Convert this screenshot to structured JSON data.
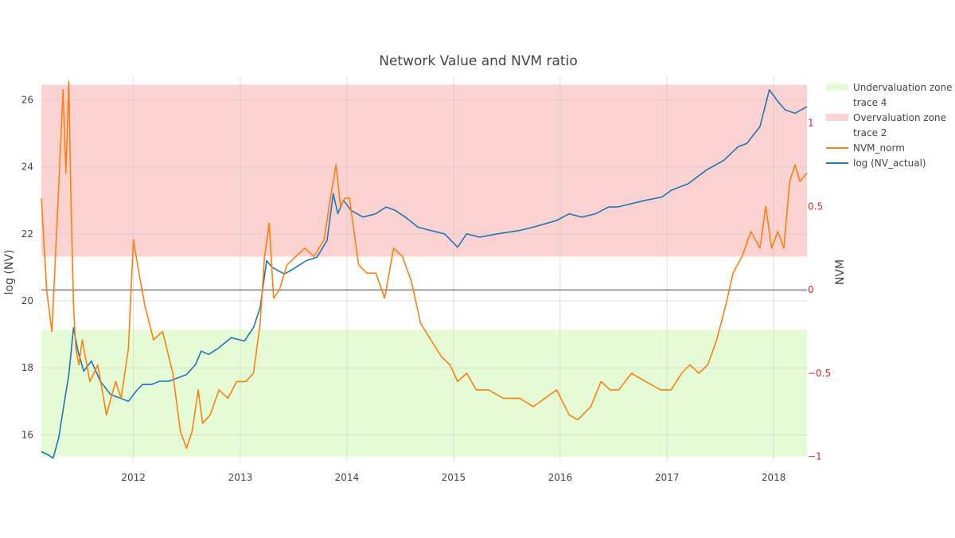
{
  "chart_data": {
    "type": "line",
    "title": "Network Value and NVM ratio",
    "x_range": [
      "2011-02-20",
      "2018-04-25"
    ],
    "x_ticks": [
      "2012",
      "2013",
      "2014",
      "2015",
      "2016",
      "2017",
      "2018"
    ],
    "y_left": {
      "label": "log (NV)",
      "range": [
        15.2,
        26.7
      ],
      "ticks": [
        "16",
        "18",
        "20",
        "22",
        "24",
        "26"
      ]
    },
    "y_right": {
      "label": "NVM",
      "range": [
        -1.03,
        1.28
      ],
      "ticks": [
        "1",
        "0.5",
        "0",
        "−0.5",
        "−1"
      ],
      "tick_values": [
        1,
        0.5,
        0,
        -0.5,
        -1
      ],
      "color": "#d62728"
    },
    "zones": [
      {
        "name": "Undervaluation zone",
        "nvm_range": [
          -1,
          -0.24
        ],
        "color": "#e5fbd6"
      },
      {
        "name": "Overvaluation zone",
        "nvm_range": [
          0.2,
          1.23
        ],
        "color": "#f9d2d1"
      }
    ],
    "zero_line": {
      "nvm": 0,
      "color": "#444444"
    },
    "legend": {
      "position": "top-right",
      "entries": [
        {
          "label": "Undervaluation zone",
          "kind": "zone",
          "color": "#e5fbd6"
        },
        {
          "label": "trace 4",
          "kind": "none",
          "color": ""
        },
        {
          "label": "Overvaluation zone",
          "kind": "zone",
          "color": "#f9d2d1"
        },
        {
          "label": "trace 2",
          "kind": "none",
          "color": ""
        },
        {
          "label": "NVM_norm",
          "kind": "line",
          "color": "#ff7f0e"
        },
        {
          "label": "log (NV_actual)",
          "kind": "line",
          "color": "#1f77b4"
        }
      ]
    },
    "series": [
      {
        "name": "log (NV_actual)",
        "axis": "left",
        "color": "#1f77b4",
        "x": [
          "2011-02-20",
          "2011-03-15",
          "2011-04-01",
          "2011-04-20",
          "2011-05-10",
          "2011-05-25",
          "2011-06-10",
          "2011-06-25",
          "2011-07-15",
          "2011-08-10",
          "2011-09-10",
          "2011-10-15",
          "2011-11-15",
          "2011-12-15",
          "2012-01-10",
          "2012-02-01",
          "2012-03-01",
          "2012-04-01",
          "2012-05-01",
          "2012-06-01",
          "2012-07-01",
          "2012-08-01",
          "2012-08-20",
          "2012-09-15",
          "2012-10-20",
          "2012-12-01",
          "2013-01-15",
          "2013-02-15",
          "2013-03-10",
          "2013-04-01",
          "2013-04-20",
          "2013-06-01",
          "2013-07-10",
          "2013-08-15",
          "2013-09-20",
          "2013-10-25",
          "2013-11-15",
          "2013-12-01",
          "2013-12-20",
          "2014-01-15",
          "2014-02-25",
          "2014-04-10",
          "2014-05-15",
          "2014-06-15",
          "2014-07-20",
          "2014-09-01",
          "2014-10-15",
          "2014-12-01",
          "2015-01-15",
          "2015-02-15",
          "2015-04-01",
          "2015-06-01",
          "2015-08-15",
          "2015-10-01",
          "2015-11-10",
          "2015-12-20",
          "2016-02-01",
          "2016-03-15",
          "2016-05-01",
          "2016-06-15",
          "2016-07-15",
          "2016-09-01",
          "2016-10-20",
          "2016-12-15",
          "2017-01-15",
          "2017-03-15",
          "2017-05-15",
          "2017-07-15",
          "2017-09-01",
          "2017-10-01",
          "2017-11-15",
          "2017-12-17",
          "2018-01-20",
          "2018-02-10",
          "2018-03-15",
          "2018-04-25"
        ],
        "y": [
          15.5,
          15.4,
          15.3,
          15.9,
          17.0,
          17.8,
          19.2,
          18.5,
          17.9,
          18.2,
          17.6,
          17.2,
          17.1,
          17.0,
          17.3,
          17.5,
          17.5,
          17.6,
          17.6,
          17.7,
          17.8,
          18.1,
          18.5,
          18.4,
          18.6,
          18.9,
          18.8,
          19.2,
          19.8,
          21.2,
          21.0,
          20.8,
          21.0,
          21.2,
          21.3,
          21.8,
          23.2,
          22.6,
          23.0,
          22.7,
          22.5,
          22.6,
          22.8,
          22.7,
          22.5,
          22.2,
          22.1,
          22.0,
          21.6,
          22.0,
          21.9,
          22.0,
          22.1,
          22.2,
          22.3,
          22.4,
          22.6,
          22.5,
          22.6,
          22.8,
          22.8,
          22.9,
          23.0,
          23.1,
          23.3,
          23.5,
          23.9,
          24.2,
          24.6,
          24.7,
          25.2,
          26.3,
          25.9,
          25.7,
          25.6,
          25.8
        ]
      },
      {
        "name": "NVM_norm",
        "axis": "right",
        "color": "#ff7f0e",
        "x": [
          "2011-02-20",
          "2011-03-10",
          "2011-03-28",
          "2011-04-12",
          "2011-04-25",
          "2011-05-05",
          "2011-05-15",
          "2011-05-25",
          "2011-06-01",
          "2011-06-10",
          "2011-06-18",
          "2011-06-28",
          "2011-07-10",
          "2011-08-05",
          "2011-09-01",
          "2011-10-01",
          "2011-11-01",
          "2011-11-20",
          "2011-12-15",
          "2012-01-01",
          "2012-01-20",
          "2012-02-10",
          "2012-03-10",
          "2012-04-10",
          "2012-05-15",
          "2012-06-10",
          "2012-07-01",
          "2012-07-20",
          "2012-08-10",
          "2012-08-25",
          "2012-09-20",
          "2012-10-20",
          "2012-11-20",
          "2012-12-20",
          "2013-01-20",
          "2013-02-15",
          "2013-03-10",
          "2013-03-25",
          "2013-04-10",
          "2013-04-25",
          "2013-05-15",
          "2013-06-10",
          "2013-07-10",
          "2013-08-10",
          "2013-09-10",
          "2013-10-15",
          "2013-11-10",
          "2013-11-25",
          "2013-12-10",
          "2013-12-25",
          "2014-01-10",
          "2014-02-10",
          "2014-03-10",
          "2014-04-10",
          "2014-05-10",
          "2014-06-10",
          "2014-07-10",
          "2014-08-10",
          "2014-09-10",
          "2014-10-15",
          "2014-11-20",
          "2014-12-20",
          "2015-01-15",
          "2015-02-15",
          "2015-03-20",
          "2015-05-01",
          "2015-06-20",
          "2015-08-15",
          "2015-10-01",
          "2015-11-10",
          "2015-12-20",
          "2016-02-01",
          "2016-03-01",
          "2016-04-15",
          "2016-05-20",
          "2016-06-20",
          "2016-07-20",
          "2016-09-01",
          "2016-10-20",
          "2016-12-10",
          "2017-01-15",
          "2017-02-20",
          "2017-03-20",
          "2017-04-20",
          "2017-05-20",
          "2017-06-20",
          "2017-07-20",
          "2017-08-15",
          "2017-09-15",
          "2017-10-15",
          "2017-11-15",
          "2017-12-05",
          "2017-12-25",
          "2018-01-15",
          "2018-02-05",
          "2018-02-25",
          "2018-03-15",
          "2018-04-01",
          "2018-04-25"
        ],
        "y": [
          0.55,
          0.0,
          -0.25,
          0.3,
          0.8,
          1.2,
          0.7,
          1.25,
          0.55,
          -0.1,
          -0.35,
          -0.45,
          -0.3,
          -0.55,
          -0.45,
          -0.75,
          -0.55,
          -0.65,
          -0.35,
          0.3,
          0.1,
          -0.1,
          -0.3,
          -0.25,
          -0.5,
          -0.85,
          -0.95,
          -0.85,
          -0.6,
          -0.8,
          -0.75,
          -0.6,
          -0.65,
          -0.55,
          -0.55,
          -0.5,
          -0.2,
          0.2,
          0.4,
          -0.05,
          0.0,
          0.15,
          0.2,
          0.25,
          0.2,
          0.3,
          0.6,
          0.75,
          0.5,
          0.55,
          0.55,
          0.15,
          0.1,
          0.1,
          -0.05,
          0.25,
          0.2,
          0.05,
          -0.2,
          -0.3,
          -0.4,
          -0.45,
          -0.55,
          -0.5,
          -0.6,
          -0.6,
          -0.65,
          -0.65,
          -0.7,
          -0.65,
          -0.6,
          -0.75,
          -0.78,
          -0.7,
          -0.55,
          -0.6,
          -0.6,
          -0.5,
          -0.55,
          -0.6,
          -0.6,
          -0.5,
          -0.45,
          -0.5,
          -0.45,
          -0.3,
          -0.1,
          0.1,
          0.2,
          0.35,
          0.25,
          0.5,
          0.25,
          0.35,
          0.25,
          0.65,
          0.75,
          0.65,
          0.7
        ]
      }
    ]
  }
}
